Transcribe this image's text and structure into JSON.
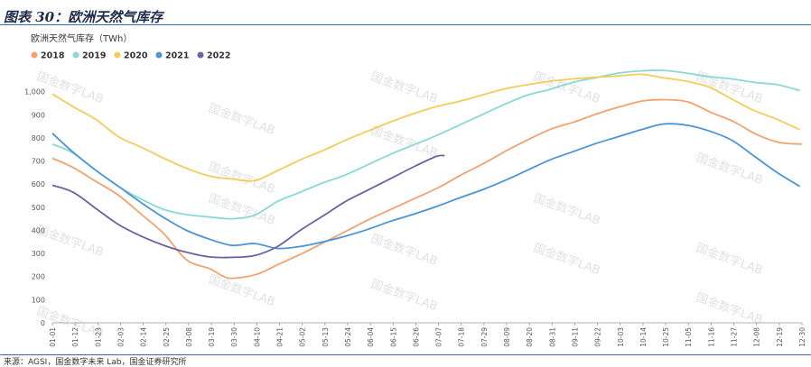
{
  "figure_title": "图表 30：欧洲天然气库存",
  "source_text": "来源：AGSI，国金数字未来 Lab，国金证券研究所",
  "watermark_text": "国金数字LAB",
  "colors": {
    "2018": "#f0a36e",
    "2019": "#88d9d5",
    "2020": "#f2cd5c",
    "2021": "#4b95d4",
    "2022": "#6b62a3",
    "rule": "#2f6fb4"
  },
  "chart_data": {
    "type": "line",
    "title": "欧洲天然气库存（TWh）",
    "xlabel": "",
    "ylabel": "",
    "ylim": [
      0,
      1100
    ],
    "yticks": [
      0,
      100,
      200,
      300,
      400,
      500,
      600,
      700,
      800,
      900,
      1000
    ],
    "ytick_labels": [
      "0",
      "100",
      "200",
      "300",
      "400",
      "500",
      "600",
      "700",
      "800",
      "900",
      "1,000"
    ],
    "grid": false,
    "legend_position": "top-left",
    "x_tick_labels": [
      "01-01",
      "01-12",
      "01-23",
      "02-03",
      "02-14",
      "02-25",
      "03-08",
      "03-19",
      "03-30",
      "04-10",
      "04-21",
      "05-02",
      "05-13",
      "05-24",
      "06-04",
      "06-15",
      "06-26",
      "07-07",
      "07-18",
      "07-29",
      "08-09",
      "08-20",
      "08-31",
      "09-11",
      "09-22",
      "10-03",
      "10-14",
      "10-25",
      "11-05",
      "11-16",
      "11-27",
      "12-08",
      "12-19",
      "12-30"
    ],
    "series": [
      {
        "name": "2018",
        "points": [
          [
            1,
            712
          ],
          [
            11,
            672
          ],
          [
            22,
            612
          ],
          [
            33,
            552
          ],
          [
            44,
            470
          ],
          [
            55,
            385
          ],
          [
            66,
            272
          ],
          [
            77,
            235
          ],
          [
            84,
            200
          ],
          [
            89,
            193
          ],
          [
            100,
            210
          ],
          [
            111,
            255
          ],
          [
            122,
            300
          ],
          [
            133,
            350
          ],
          [
            144,
            400
          ],
          [
            155,
            450
          ],
          [
            166,
            495
          ],
          [
            177,
            540
          ],
          [
            188,
            585
          ],
          [
            199,
            640
          ],
          [
            210,
            690
          ],
          [
            221,
            745
          ],
          [
            232,
            795
          ],
          [
            243,
            840
          ],
          [
            254,
            870
          ],
          [
            265,
            905
          ],
          [
            276,
            935
          ],
          [
            287,
            960
          ],
          [
            298,
            965
          ],
          [
            309,
            955
          ],
          [
            320,
            910
          ],
          [
            331,
            870
          ],
          [
            342,
            815
          ],
          [
            353,
            780
          ],
          [
            364,
            773
          ]
        ]
      },
      {
        "name": "2019",
        "points": [
          [
            1,
            773
          ],
          [
            11,
            735
          ],
          [
            22,
            660
          ],
          [
            33,
            590
          ],
          [
            44,
            535
          ],
          [
            55,
            490
          ],
          [
            66,
            468
          ],
          [
            77,
            458
          ],
          [
            88,
            450
          ],
          [
            99,
            466
          ],
          [
            110,
            525
          ],
          [
            121,
            565
          ],
          [
            132,
            605
          ],
          [
            143,
            640
          ],
          [
            154,
            685
          ],
          [
            165,
            730
          ],
          [
            176,
            770
          ],
          [
            187,
            810
          ],
          [
            198,
            855
          ],
          [
            209,
            900
          ],
          [
            220,
            945
          ],
          [
            231,
            985
          ],
          [
            242,
            1010
          ],
          [
            253,
            1040
          ],
          [
            264,
            1060
          ],
          [
            275,
            1080
          ],
          [
            286,
            1090
          ],
          [
            297,
            1092
          ],
          [
            308,
            1080
          ],
          [
            319,
            1065
          ],
          [
            330,
            1055
          ],
          [
            341,
            1040
          ],
          [
            352,
            1030
          ],
          [
            363,
            1005
          ]
        ]
      },
      {
        "name": "2020",
        "points": [
          [
            1,
            990
          ],
          [
            11,
            935
          ],
          [
            22,
            880
          ],
          [
            33,
            805
          ],
          [
            44,
            760
          ],
          [
            55,
            712
          ],
          [
            66,
            668
          ],
          [
            77,
            635
          ],
          [
            88,
            622
          ],
          [
            99,
            615
          ],
          [
            110,
            658
          ],
          [
            121,
            705
          ],
          [
            132,
            745
          ],
          [
            143,
            790
          ],
          [
            154,
            830
          ],
          [
            165,
            870
          ],
          [
            176,
            905
          ],
          [
            187,
            935
          ],
          [
            198,
            958
          ],
          [
            209,
            985
          ],
          [
            220,
            1012
          ],
          [
            231,
            1030
          ],
          [
            242,
            1045
          ],
          [
            253,
            1055
          ],
          [
            264,
            1062
          ],
          [
            275,
            1068
          ],
          [
            286,
            1075
          ],
          [
            297,
            1060
          ],
          [
            308,
            1045
          ],
          [
            319,
            1020
          ],
          [
            330,
            968
          ],
          [
            341,
            918
          ],
          [
            352,
            880
          ],
          [
            363,
            835
          ]
        ]
      },
      {
        "name": "2021",
        "points": [
          [
            1,
            820
          ],
          [
            11,
            738
          ],
          [
            22,
            660
          ],
          [
            33,
            590
          ],
          [
            44,
            520
          ],
          [
            55,
            455
          ],
          [
            66,
            400
          ],
          [
            77,
            362
          ],
          [
            88,
            335
          ],
          [
            99,
            343
          ],
          [
            110,
            322
          ],
          [
            121,
            330
          ],
          [
            132,
            350
          ],
          [
            143,
            375
          ],
          [
            154,
            405
          ],
          [
            165,
            440
          ],
          [
            176,
            470
          ],
          [
            187,
            503
          ],
          [
            198,
            540
          ],
          [
            209,
            575
          ],
          [
            220,
            615
          ],
          [
            231,
            660
          ],
          [
            242,
            705
          ],
          [
            253,
            740
          ],
          [
            264,
            775
          ],
          [
            275,
            805
          ],
          [
            286,
            835
          ],
          [
            297,
            860
          ],
          [
            308,
            855
          ],
          [
            319,
            830
          ],
          [
            330,
            790
          ],
          [
            341,
            720
          ],
          [
            352,
            650
          ],
          [
            363,
            590
          ]
        ]
      },
      {
        "name": "2022",
        "points": [
          [
            1,
            595
          ],
          [
            11,
            565
          ],
          [
            22,
            495
          ],
          [
            33,
            425
          ],
          [
            44,
            375
          ],
          [
            55,
            335
          ],
          [
            66,
            305
          ],
          [
            77,
            285
          ],
          [
            88,
            283
          ],
          [
            99,
            291
          ],
          [
            110,
            330
          ],
          [
            121,
            400
          ],
          [
            132,
            462
          ],
          [
            143,
            525
          ],
          [
            154,
            575
          ],
          [
            165,
            625
          ],
          [
            176,
            675
          ],
          [
            187,
            720
          ],
          [
            191,
            723
          ]
        ]
      }
    ]
  }
}
